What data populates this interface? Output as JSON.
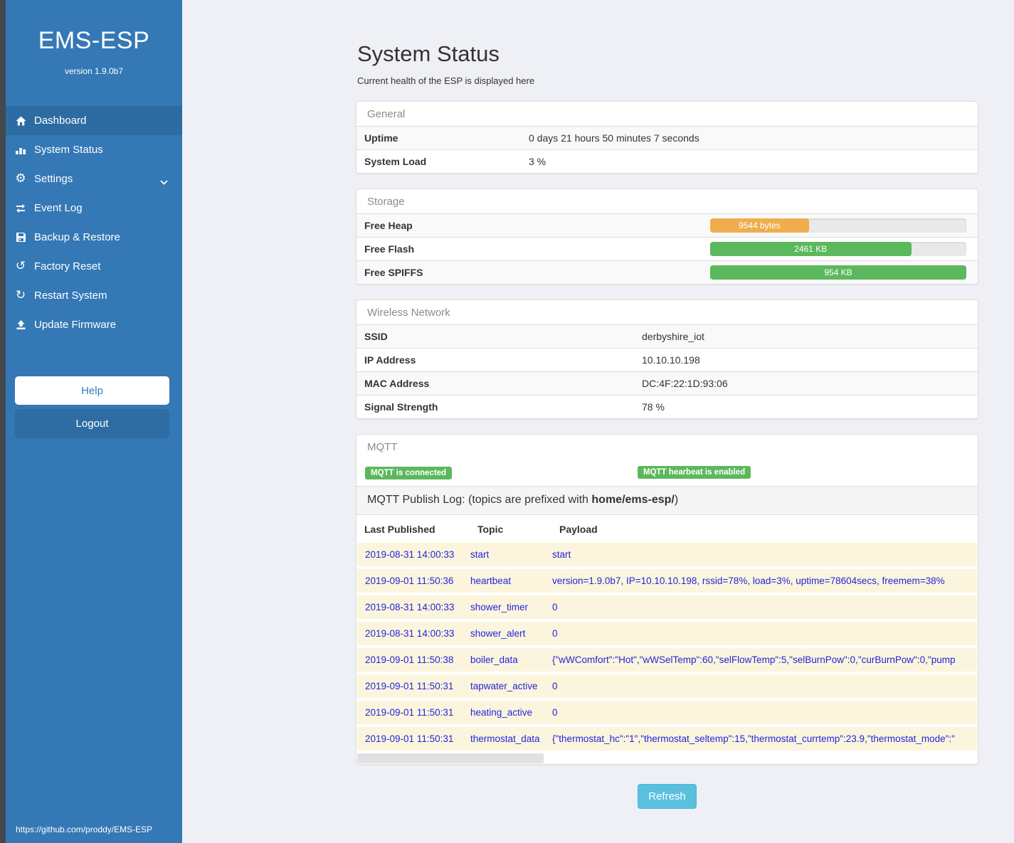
{
  "colors": {
    "sidebar_blue": "#3478b5",
    "active_item_blue": "#2d6ca2",
    "success_green": "#5cb85c",
    "warning_orange": "#f0ad4e",
    "info_blue": "#5bc0de",
    "log_text_blue": "#2424dd",
    "log_row_cream": "#fbf5dd"
  },
  "sidebar": {
    "title": "EMS-ESP",
    "version": "version 1.9.0b7",
    "nav": [
      {
        "label": "Dashboard",
        "icon": "home-icon",
        "active": true
      },
      {
        "label": "System Status",
        "icon": "status-bars-icon",
        "active": false
      },
      {
        "label": "Settings",
        "icon": "gear-icon",
        "active": false,
        "chevron": "chevron-down-icon"
      },
      {
        "label": "Event Log",
        "icon": "exchange-arrows-icon",
        "active": false
      },
      {
        "label": "Backup & Restore",
        "icon": "floppy-save-icon",
        "active": false
      },
      {
        "label": "Factory Reset",
        "icon": "undo-rotate-icon",
        "active": false
      },
      {
        "label": "Restart System",
        "icon": "refresh-icon",
        "active": false
      },
      {
        "label": "Update Firmware",
        "icon": "upload-icon",
        "active": false
      }
    ],
    "help_label": "Help",
    "logout_label": "Logout",
    "footer_link": "https://github.com/proddy/EMS-ESP"
  },
  "page": {
    "title": "System Status",
    "subtitle": "Current health of the ESP is displayed here",
    "refresh_label": "Refresh"
  },
  "panels": {
    "general": {
      "title": "General",
      "rows": [
        {
          "label": "Uptime",
          "value": "0 days 21 hours 50 minutes 7 seconds"
        },
        {
          "label": "System Load",
          "value": "3 %"
        }
      ]
    },
    "storage": {
      "title": "Storage",
      "rows": [
        {
          "label": "Free Heap",
          "bar_label": "9544 bytes",
          "percent": 38.5,
          "color": "#f0ad4e"
        },
        {
          "label": "Free Flash",
          "bar_label": "2461 KB",
          "percent": 78.5,
          "color": "#5cb85c"
        },
        {
          "label": "Free SPIFFS",
          "bar_label": "954 KB",
          "percent": 100,
          "color": "#5cb85c"
        }
      ]
    },
    "wireless": {
      "title": "Wireless Network",
      "rows": [
        {
          "label": "SSID",
          "value": "derbyshire_iot"
        },
        {
          "label": "IP Address",
          "value": "10.10.10.198"
        },
        {
          "label": "MAC Address",
          "value": "DC:4F:22:1D:93:06"
        },
        {
          "label": "Signal Strength",
          "value": "78 %"
        }
      ]
    },
    "mqtt": {
      "title": "MQTT",
      "badges": [
        "MQTT is connected",
        "MQTT hearbeat is enabled"
      ],
      "log_title_prefix": "MQTT Publish Log: (topics are prefixed with ",
      "log_title_bold": "home/ems-esp/",
      "log_title_suffix": ")",
      "columns": [
        "Last Published",
        "Topic",
        "Payload"
      ],
      "rows": [
        {
          "published": "2019-08-31 14:00:33",
          "topic": "start",
          "payload": "start"
        },
        {
          "published": "2019-09-01 11:50:36",
          "topic": "heartbeat",
          "payload": "version=1.9.0b7, IP=10.10.10.198, rssid=78%, load=3%, uptime=78604secs, freemem=38%"
        },
        {
          "published": "2019-08-31 14:00:33",
          "topic": "shower_timer",
          "payload": "0"
        },
        {
          "published": "2019-08-31 14:00:33",
          "topic": "shower_alert",
          "payload": "0"
        },
        {
          "published": "2019-09-01 11:50:38",
          "topic": "boiler_data",
          "payload": "{\"wWComfort\":\"Hot\",\"wWSelTemp\":60,\"selFlowTemp\":5,\"selBurnPow\":0,\"curBurnPow\":0,\"pump"
        },
        {
          "published": "2019-09-01 11:50:31",
          "topic": "tapwater_active",
          "payload": "0"
        },
        {
          "published": "2019-09-01 11:50:31",
          "topic": "heating_active",
          "payload": "0"
        },
        {
          "published": "2019-09-01 11:50:31",
          "topic": "thermostat_data",
          "payload": "{\"thermostat_hc\":\"1\",\"thermostat_seltemp\":15,\"thermostat_currtemp\":23.9,\"thermostat_mode\":\""
        }
      ]
    }
  }
}
